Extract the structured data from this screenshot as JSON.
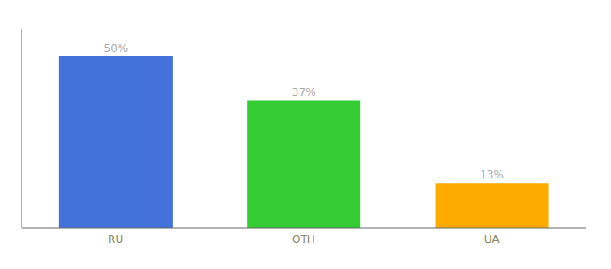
{
  "chart_data": {
    "type": "bar",
    "categories": [
      "RU",
      "OTH",
      "UA"
    ],
    "values": [
      50,
      37,
      13
    ],
    "value_labels": [
      "50%",
      "37%",
      "13%"
    ],
    "colors": [
      "#4472db",
      "#33cc33",
      "#ffaa00"
    ],
    "ylim": [
      0,
      58
    ],
    "grid": false,
    "data_labels": true,
    "tick_labels": "x"
  }
}
